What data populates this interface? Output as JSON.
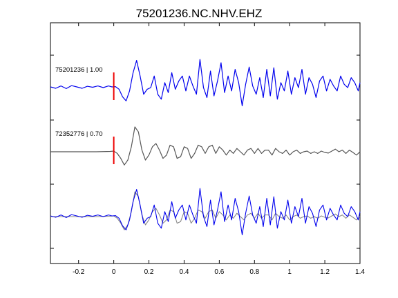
{
  "chart_data": {
    "type": "line",
    "title": "75201236.NC.NHV.EHZ",
    "xlabel": "",
    "ylabel": "",
    "xlim": [
      -0.36,
      1.4
    ],
    "xticks": [
      -0.2,
      0,
      0.2,
      0.4,
      0.6,
      0.8,
      1,
      1.2,
      1.4
    ],
    "xtick_labels": [
      "-0.2",
      "0",
      "0.2",
      "0.4",
      "0.6",
      "0.8",
      "1",
      "1.2",
      "1.4"
    ],
    "grid": false,
    "legend": "none",
    "pick_time": 0,
    "pick_color": "#ee0000",
    "traces": [
      {
        "label": "75201236 | 1.00",
        "color": "#0000ee",
        "baseline": 1,
        "points": [
          [
            -0.36,
            0.02
          ],
          [
            -0.33,
            -0.02
          ],
          [
            -0.3,
            0.05
          ],
          [
            -0.27,
            -0.03
          ],
          [
            -0.24,
            0.06
          ],
          [
            -0.21,
            0.02
          ],
          [
            -0.18,
            -0.02
          ],
          [
            -0.15,
            0.04
          ],
          [
            -0.12,
            0.01
          ],
          [
            -0.09,
            0.05
          ],
          [
            -0.06,
            0.0
          ],
          [
            -0.03,
            0.05
          ],
          [
            -0.01,
            0.02
          ],
          [
            0.01,
            0.03
          ],
          [
            0.03,
            -0.05
          ],
          [
            0.05,
            -0.28
          ],
          [
            0.07,
            -0.4
          ],
          [
            0.09,
            -0.1
          ],
          [
            0.11,
            0.45
          ],
          [
            0.13,
            0.82
          ],
          [
            0.15,
            0.35
          ],
          [
            0.17,
            -0.2
          ],
          [
            0.19,
            -0.05
          ],
          [
            0.21,
            0.0
          ],
          [
            0.23,
            0.35
          ],
          [
            0.25,
            -0.2
          ],
          [
            0.27,
            -0.35
          ],
          [
            0.29,
            0.15
          ],
          [
            0.31,
            -0.15
          ],
          [
            0.33,
            0.45
          ],
          [
            0.35,
            -0.05
          ],
          [
            0.37,
            0.2
          ],
          [
            0.39,
            0.35
          ],
          [
            0.41,
            -0.1
          ],
          [
            0.43,
            0.35
          ],
          [
            0.45,
            0.05
          ],
          [
            0.47,
            -0.2
          ],
          [
            0.49,
            0.85
          ],
          [
            0.51,
            0.0
          ],
          [
            0.53,
            -0.3
          ],
          [
            0.55,
            0.5
          ],
          [
            0.57,
            -0.25
          ],
          [
            0.59,
            0.2
          ],
          [
            0.61,
            0.75
          ],
          [
            0.63,
            -0.15
          ],
          [
            0.65,
            0.35
          ],
          [
            0.67,
            -0.1
          ],
          [
            0.69,
            0.55
          ],
          [
            0.71,
            0.15
          ],
          [
            0.73,
            -0.55
          ],
          [
            0.75,
            0.1
          ],
          [
            0.77,
            0.62
          ],
          [
            0.79,
            0.05
          ],
          [
            0.81,
            -0.2
          ],
          [
            0.83,
            0.3
          ],
          [
            0.85,
            -0.3
          ],
          [
            0.87,
            0.55
          ],
          [
            0.89,
            -0.25
          ],
          [
            0.91,
            0.6
          ],
          [
            0.93,
            -0.35
          ],
          [
            0.95,
            0.15
          ],
          [
            0.97,
            -0.1
          ],
          [
            0.99,
            0.5
          ],
          [
            1.01,
            -0.2
          ],
          [
            1.03,
            0.3
          ],
          [
            1.05,
            0.0
          ],
          [
            1.07,
            0.55
          ],
          [
            1.09,
            -0.2
          ],
          [
            1.11,
            0.3
          ],
          [
            1.13,
            0.1
          ],
          [
            1.15,
            -0.3
          ],
          [
            1.17,
            0.2
          ],
          [
            1.19,
            0.35
          ],
          [
            1.21,
            -0.1
          ],
          [
            1.23,
            0.25
          ],
          [
            1.25,
            0.05
          ],
          [
            1.27,
            -0.1
          ],
          [
            1.29,
            0.35
          ],
          [
            1.31,
            0.1
          ],
          [
            1.33,
            0.0
          ],
          [
            1.35,
            0.3
          ],
          [
            1.37,
            0.15
          ],
          [
            1.39,
            -0.1
          ],
          [
            1.4,
            0.15
          ]
        ]
      },
      {
        "label": "72352776 | 0.70",
        "color": "#555555",
        "baseline": 0,
        "points": [
          [
            -0.36,
            0.0
          ],
          [
            -0.3,
            0.0
          ],
          [
            -0.2,
            0.0
          ],
          [
            -0.1,
            0.0
          ],
          [
            -0.02,
            0.01
          ],
          [
            0.0,
            0.02
          ],
          [
            0.02,
            -0.05
          ],
          [
            0.04,
            -0.2
          ],
          [
            0.06,
            -0.4
          ],
          [
            0.08,
            -0.25
          ],
          [
            0.1,
            0.15
          ],
          [
            0.12,
            0.75
          ],
          [
            0.14,
            0.6
          ],
          [
            0.16,
            0.05
          ],
          [
            0.18,
            -0.25
          ],
          [
            0.2,
            -0.1
          ],
          [
            0.22,
            0.15
          ],
          [
            0.24,
            0.25
          ],
          [
            0.26,
            0.05
          ],
          [
            0.28,
            -0.2
          ],
          [
            0.3,
            -0.1
          ],
          [
            0.32,
            0.2
          ],
          [
            0.34,
            0.15
          ],
          [
            0.36,
            -0.2
          ],
          [
            0.38,
            -0.15
          ],
          [
            0.4,
            0.15
          ],
          [
            0.42,
            0.1
          ],
          [
            0.44,
            -0.2
          ],
          [
            0.46,
            -0.05
          ],
          [
            0.48,
            0.2
          ],
          [
            0.5,
            0.15
          ],
          [
            0.52,
            -0.05
          ],
          [
            0.54,
            0.15
          ],
          [
            0.56,
            0.2
          ],
          [
            0.58,
            -0.05
          ],
          [
            0.6,
            0.15
          ],
          [
            0.62,
            0.05
          ],
          [
            0.64,
            -0.1
          ],
          [
            0.66,
            0.05
          ],
          [
            0.68,
            -0.05
          ],
          [
            0.7,
            0.1
          ],
          [
            0.72,
            0.0
          ],
          [
            0.74,
            -0.1
          ],
          [
            0.76,
            0.05
          ],
          [
            0.78,
            0.1
          ],
          [
            0.8,
            -0.05
          ],
          [
            0.82,
            0.1
          ],
          [
            0.84,
            -0.05
          ],
          [
            0.86,
            0.05
          ],
          [
            0.88,
            0.05
          ],
          [
            0.9,
            -0.1
          ],
          [
            0.92,
            0.1
          ],
          [
            0.94,
            0.0
          ],
          [
            0.96,
            -0.05
          ],
          [
            0.98,
            0.05
          ],
          [
            1.0,
            -0.1
          ],
          [
            1.02,
            0.0
          ],
          [
            1.04,
            0.05
          ],
          [
            1.06,
            -0.05
          ],
          [
            1.08,
            0.0
          ],
          [
            1.1,
            0.02
          ],
          [
            1.12,
            -0.05
          ],
          [
            1.14,
            0.0
          ],
          [
            1.16,
            -0.05
          ],
          [
            1.18,
            0.02
          ],
          [
            1.2,
            -0.02
          ],
          [
            1.22,
            -0.04
          ],
          [
            1.24,
            0.02
          ],
          [
            1.26,
            0.08
          ],
          [
            1.28,
            0.0
          ],
          [
            1.3,
            0.05
          ],
          [
            1.32,
            -0.05
          ],
          [
            1.34,
            0.05
          ],
          [
            1.36,
            -0.02
          ],
          [
            1.38,
            -0.1
          ],
          [
            1.4,
            0.0
          ]
        ]
      }
    ],
    "overlay": {
      "baseline": -1,
      "traces": [
        "72352776 | 0.70",
        "75201236 | 1.00"
      ]
    }
  }
}
